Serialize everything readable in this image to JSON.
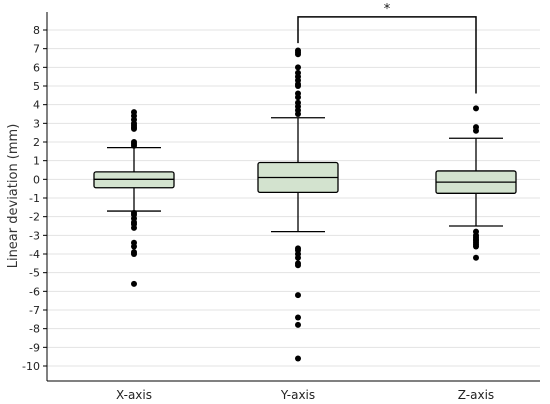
{
  "chart_data": {
    "type": "box",
    "ylabel": "Linear deviation (mm)",
    "ylim": [
      -10.5,
      8.5
    ],
    "yticks": [
      8,
      7,
      6,
      5,
      4,
      3,
      2,
      1,
      0,
      -1,
      -2,
      -3,
      -4,
      -5,
      -6,
      -7,
      -8,
      -9,
      -10
    ],
    "grid": "horizontal",
    "box_color": "#d3e3cf",
    "categories": [
      "X-axis",
      "Y-axis",
      "Z-axis"
    ],
    "boxes": [
      {
        "category": "X-axis",
        "whisker_low": -1.7,
        "q1": -0.45,
        "median": 0.0,
        "q3": 0.4,
        "whisker_high": 1.7,
        "outliers": [
          3.6,
          3.4,
          3.2,
          3.0,
          2.9,
          2.8,
          2.7,
          2.0,
          1.9,
          1.8,
          -1.8,
          -1.9,
          -2.1,
          -2.3,
          -2.4,
          -2.6,
          -3.4,
          -3.6,
          -3.9,
          -4.0,
          -5.6
        ]
      },
      {
        "category": "Y-axis",
        "whisker_low": -2.8,
        "q1": -0.7,
        "median": 0.1,
        "q3": 0.9,
        "whisker_high": 3.3,
        "outliers": [
          6.9,
          6.8,
          6.7,
          6.0,
          5.7,
          5.5,
          5.3,
          5.1,
          5.0,
          4.6,
          4.4,
          4.1,
          3.9,
          3.7,
          3.5,
          -3.7,
          -3.8,
          -4.0,
          -4.2,
          -4.5,
          -4.6,
          -6.2,
          -7.4,
          -7.8,
          -9.6
        ]
      },
      {
        "category": "Z-axis",
        "whisker_low": -2.5,
        "q1": -0.75,
        "median": -0.15,
        "q3": 0.45,
        "whisker_high": 2.2,
        "outliers": [
          3.8,
          2.8,
          2.6,
          -2.8,
          -3.0,
          -3.1,
          -3.2,
          -3.3,
          -3.4,
          -3.5,
          -3.6,
          -4.2
        ]
      }
    ],
    "annotations": [
      {
        "type": "significance-bracket",
        "from": "Y-axis",
        "to": "Z-axis",
        "y": 8.7,
        "drop_to": 4.6,
        "label": "*"
      }
    ]
  }
}
